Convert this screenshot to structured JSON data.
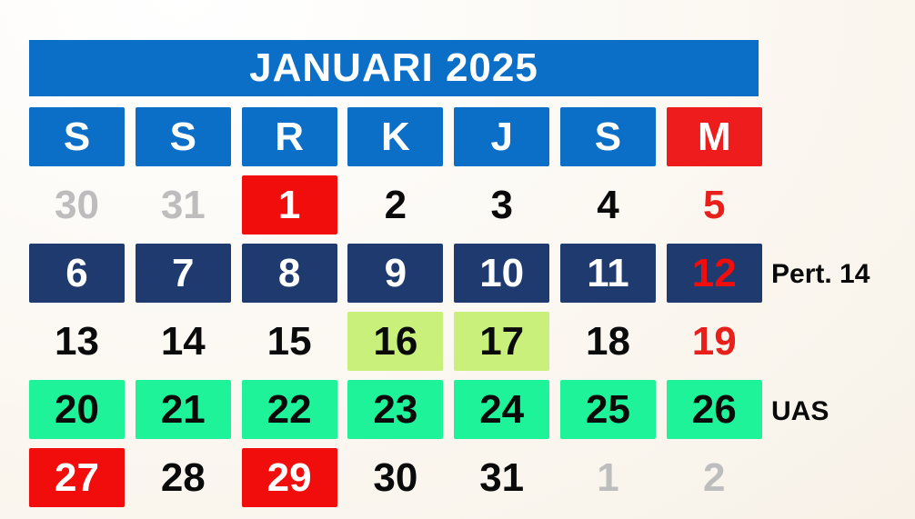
{
  "calendar": {
    "title": "JANUARI 2025",
    "weekdays": [
      "S",
      "S",
      "R",
      "K",
      "J",
      "S",
      "M"
    ],
    "weeks": [
      [
        {
          "d": "30",
          "style": "muted"
        },
        {
          "d": "31",
          "style": "muted"
        },
        {
          "d": "1",
          "style": "red"
        },
        {
          "d": "2",
          "style": "plain"
        },
        {
          "d": "3",
          "style": "plain"
        },
        {
          "d": "4",
          "style": "plain"
        },
        {
          "d": "5",
          "style": "sunday"
        }
      ],
      [
        {
          "d": "6",
          "style": "navy"
        },
        {
          "d": "7",
          "style": "navy"
        },
        {
          "d": "8",
          "style": "navy"
        },
        {
          "d": "9",
          "style": "navy"
        },
        {
          "d": "10",
          "style": "navy"
        },
        {
          "d": "11",
          "style": "navy"
        },
        {
          "d": "12",
          "style": "navy-sunday"
        }
      ],
      [
        {
          "d": "13",
          "style": "plain"
        },
        {
          "d": "14",
          "style": "plain"
        },
        {
          "d": "15",
          "style": "plain"
        },
        {
          "d": "16",
          "style": "lime"
        },
        {
          "d": "17",
          "style": "lime"
        },
        {
          "d": "18",
          "style": "plain"
        },
        {
          "d": "19",
          "style": "sunday"
        }
      ],
      [
        {
          "d": "20",
          "style": "mint"
        },
        {
          "d": "21",
          "style": "mint"
        },
        {
          "d": "22",
          "style": "mint"
        },
        {
          "d": "23",
          "style": "mint"
        },
        {
          "d": "24",
          "style": "mint"
        },
        {
          "d": "25",
          "style": "mint"
        },
        {
          "d": "26",
          "style": "mint"
        }
      ],
      [
        {
          "d": "27",
          "style": "red"
        },
        {
          "d": "28",
          "style": "plain"
        },
        {
          "d": "29",
          "style": "red"
        },
        {
          "d": "30",
          "style": "plain"
        },
        {
          "d": "31",
          "style": "plain"
        },
        {
          "d": "1",
          "style": "muted"
        },
        {
          "d": "2",
          "style": "muted"
        }
      ]
    ],
    "row_labels": {
      "week2": "Pert. 14",
      "week4": "UAS"
    },
    "colors": {
      "header_blue": "#0b6fc7",
      "holiday_red": "#f20d0d",
      "navy": "#1f3a6e",
      "lime": "#c8f07a",
      "mint": "#1ff39a",
      "muted_gray": "#bdbdbd"
    }
  }
}
